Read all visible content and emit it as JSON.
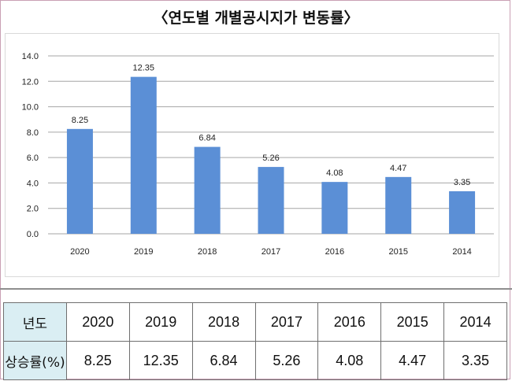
{
  "title": "〈연도별 개별공시지가 변동률〉",
  "chart_data": {
    "type": "bar",
    "categories": [
      "2020",
      "2019",
      "2018",
      "2017",
      "2016",
      "2015",
      "2014"
    ],
    "values": [
      8.25,
      12.35,
      6.84,
      5.26,
      4.08,
      4.47,
      3.35
    ],
    "value_labels": [
      "8.25",
      "12.35",
      "6.84",
      "5.26",
      "4.08",
      "4.47",
      "3.35"
    ],
    "ylim": [
      0,
      14
    ],
    "yticks": [
      "0.0",
      "2.0",
      "4.0",
      "6.0",
      "8.0",
      "10.0",
      "12.0",
      "14.0"
    ],
    "grid": true,
    "bar_color": "#5b8fd6",
    "grid_color": "#a6a6a6"
  },
  "table": {
    "header_label": "년도",
    "row_label": "상승률(%)",
    "years": [
      "2020",
      "2019",
      "2018",
      "2017",
      "2016",
      "2015",
      "2014"
    ],
    "values": [
      "8.25",
      "12.35",
      "6.84",
      "5.26",
      "4.08",
      "4.47",
      "3.35"
    ]
  },
  "colors": {
    "header_bg": "#daeef3",
    "frame": "#c9a0b4"
  }
}
